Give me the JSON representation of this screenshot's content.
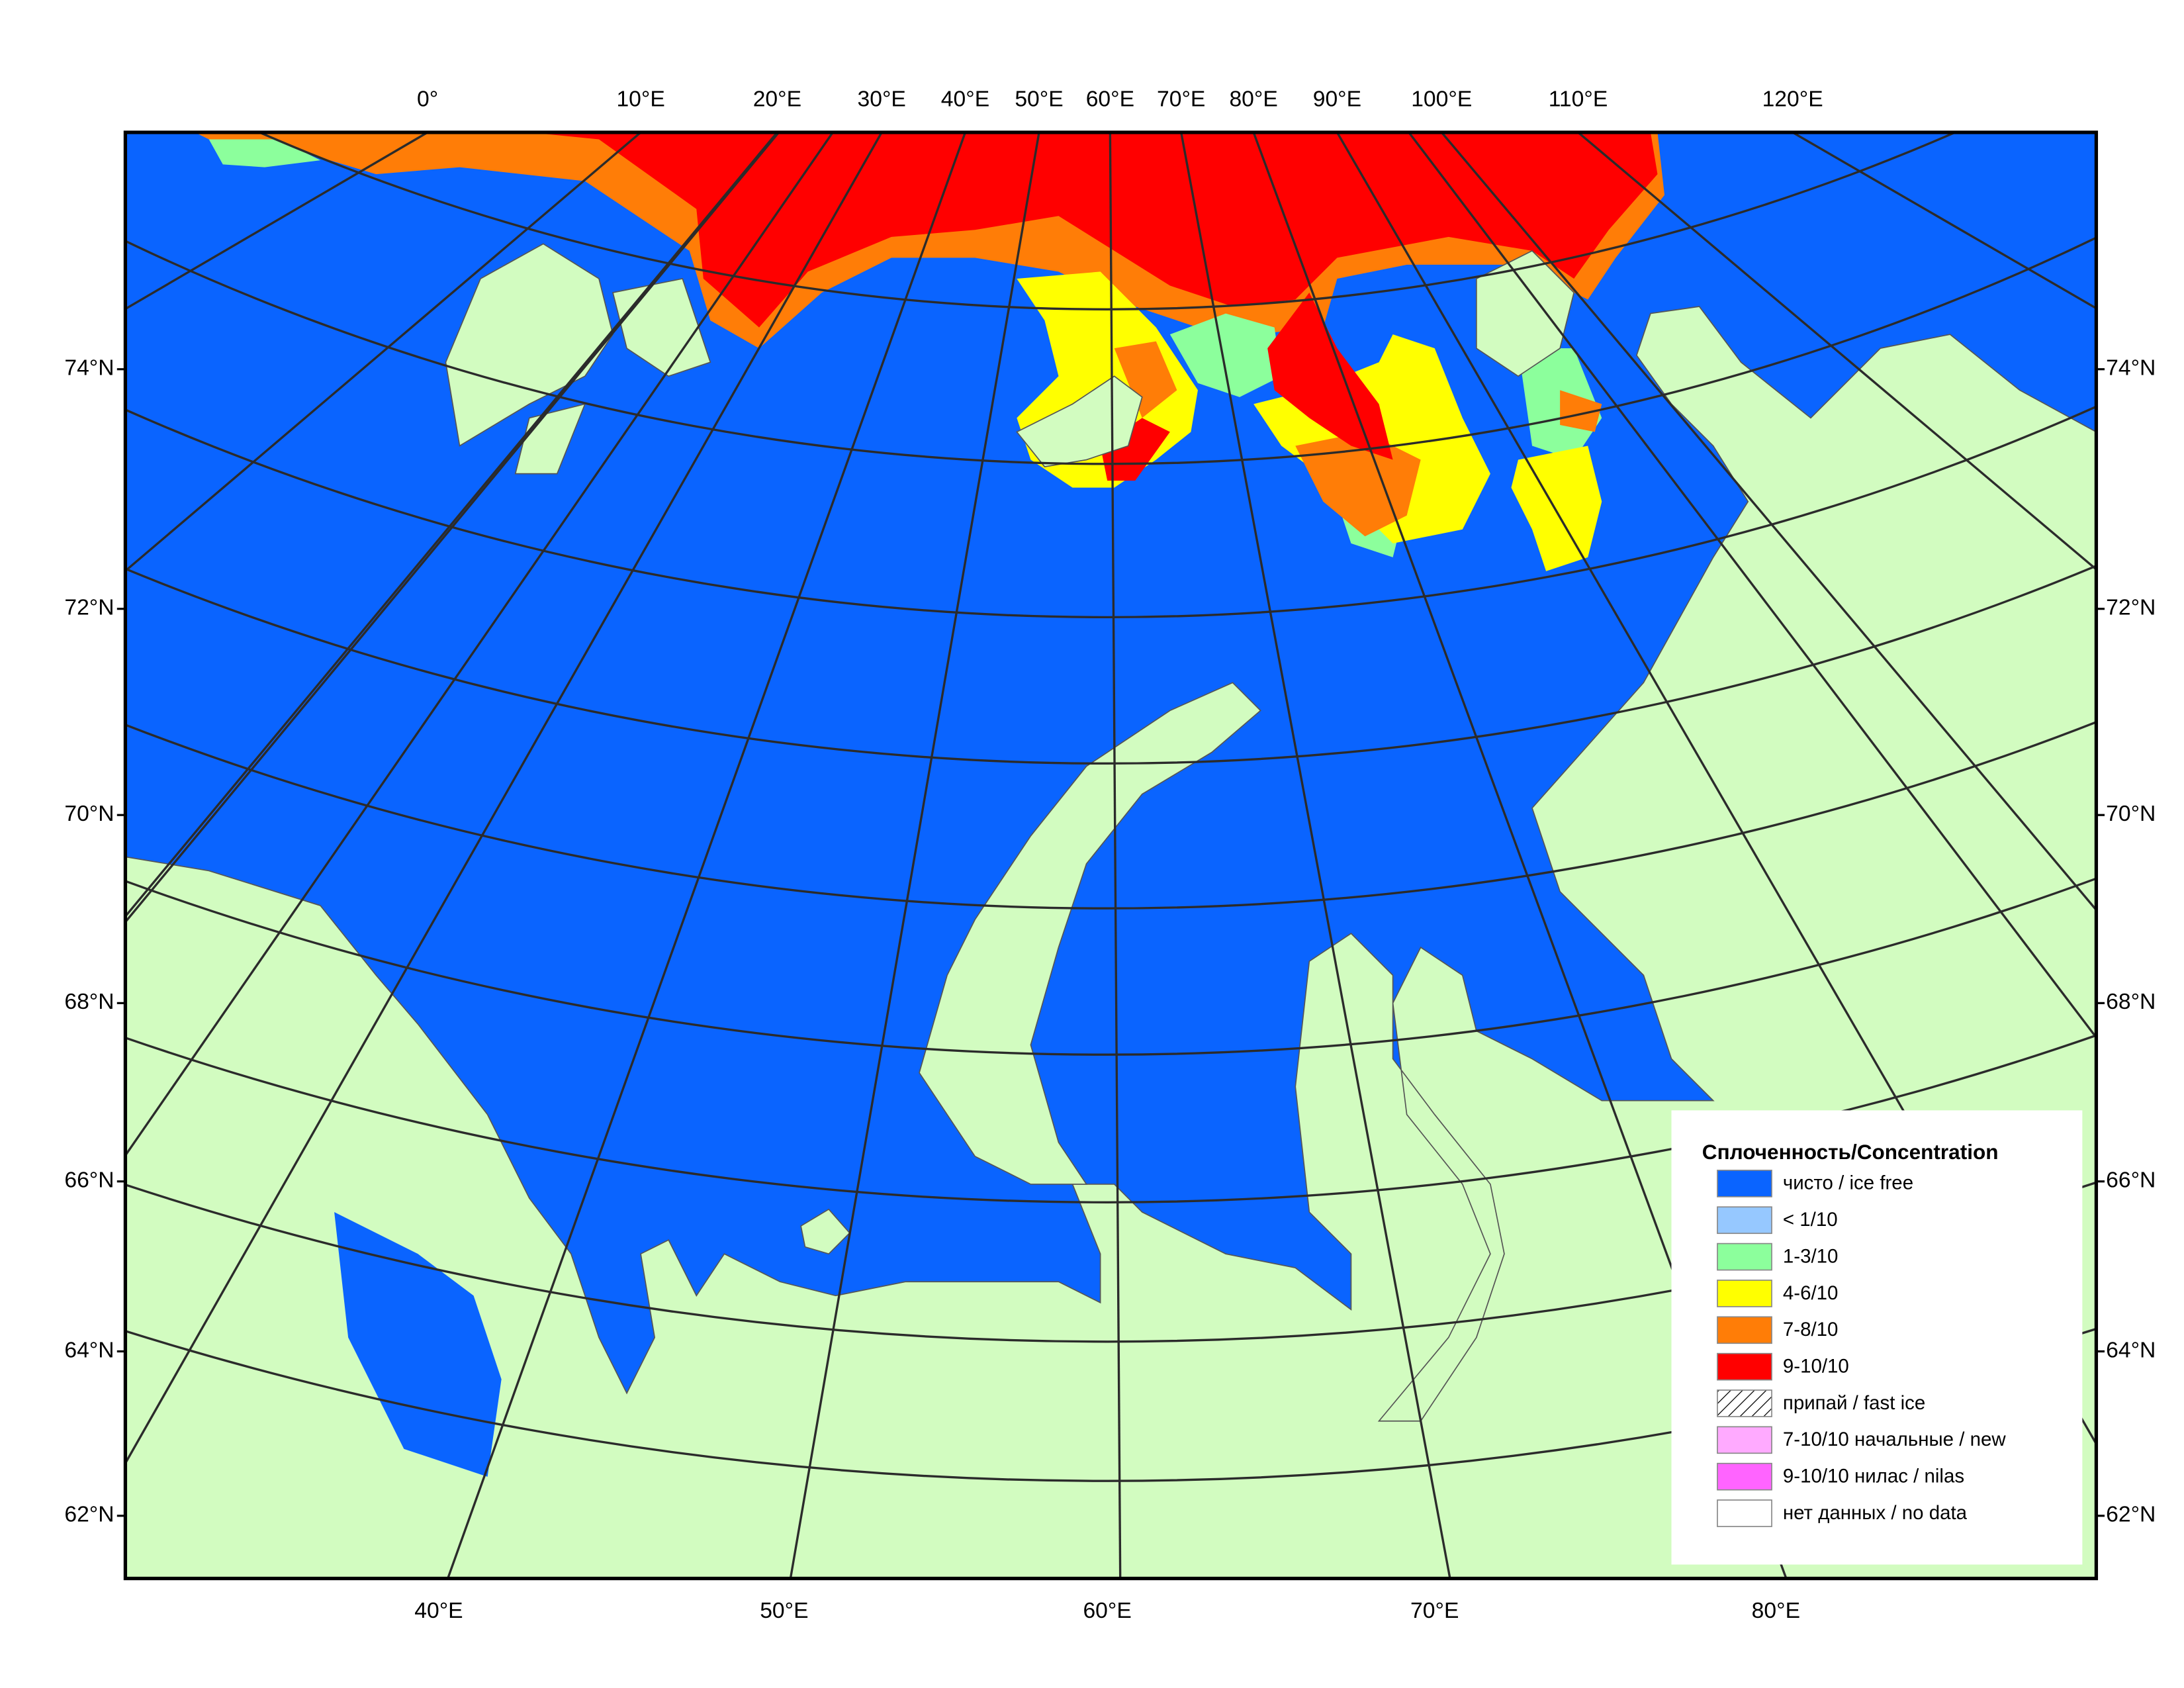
{
  "map": {
    "top_labels": [
      "0°",
      "10°E",
      "20°E",
      "30°E",
      "40°E",
      "50°E",
      "60°E",
      "70°E",
      "80°E",
      "90°E",
      "100°E",
      "110°E",
      "120°E"
    ],
    "bottom_labels": [
      "40°E",
      "50°E",
      "60°E",
      "70°E",
      "80°E"
    ],
    "lat_labels": [
      "74°N",
      "72°N",
      "70°N",
      "68°N",
      "66°N",
      "64°N",
      "62°N"
    ],
    "legend": {
      "title": "Сплоченность/Concentration",
      "items": [
        {
          "label": "чисто / ice free",
          "color": "#0a64ff"
        },
        {
          "label": "< 1/10",
          "color": "#96c8ff"
        },
        {
          "label": "1-3/10",
          "color": "#8cff9c"
        },
        {
          "label": "4-6/10",
          "color": "#ffff00"
        },
        {
          "label": "7-8/10",
          "color": "#ff7d07"
        },
        {
          "label": "9-10/10",
          "color": "#ff0000"
        },
        {
          "label": "припай / fast ice",
          "color": "#ffffff",
          "pattern": "hatch"
        },
        {
          "label": "7-10/10 начальные / new",
          "color": "#ffaaff"
        },
        {
          "label": "9-10/10 нилас / nilas",
          "color": "#ff64ff"
        },
        {
          "label": "нет данных / no data",
          "color": "#ffffff"
        }
      ]
    }
  }
}
